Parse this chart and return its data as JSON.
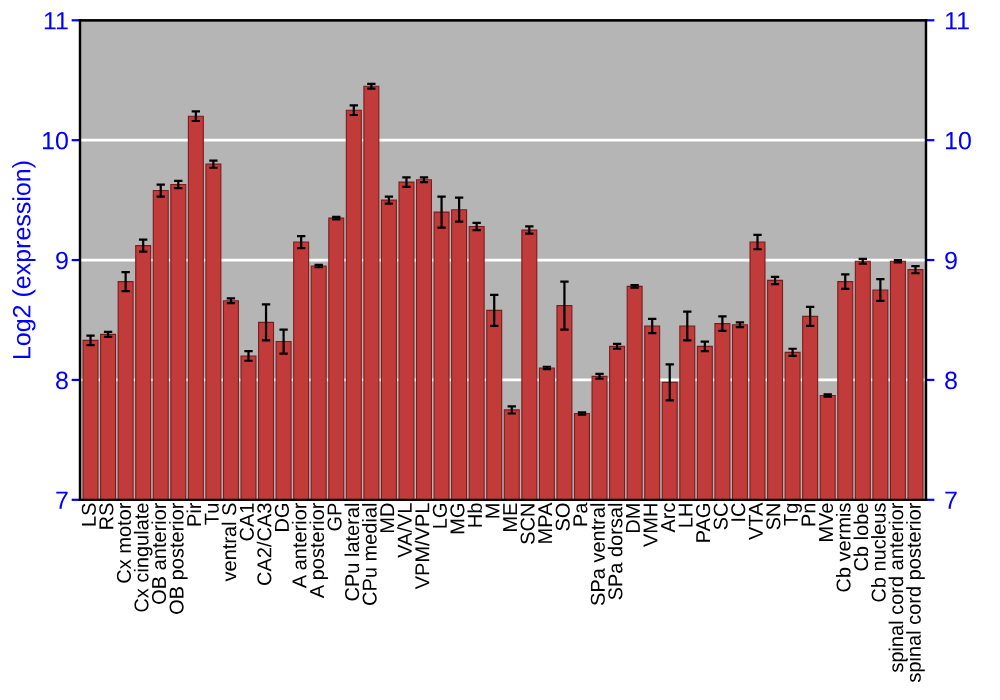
{
  "chart_data": {
    "type": "bar",
    "ylabel": "Log2 (expression)",
    "categories": [
      "LS",
      "RS",
      "Cx motor",
      "Cx cingulate",
      "OB anterior",
      "OB posterior",
      "Pir",
      "Tu",
      "ventral S",
      "CA1",
      "CA2/CA3",
      "DG",
      "A anterior",
      "A posterior",
      "GP",
      "CPu lateral",
      "CPu medial",
      "MD",
      "VA/VL",
      "VPM/VPL",
      "LG",
      "MG",
      "Hb",
      "M",
      "ME",
      "SCN",
      "MPA",
      "SO",
      "Pa",
      "SPa ventral",
      "SPa dorsal",
      "DM",
      "VMH",
      "Arc",
      "LH",
      "PAG",
      "SC",
      "IC",
      "VTA",
      "SN",
      "Tg",
      "Pn",
      "MVe",
      "Cb vermis",
      "Cb lobe",
      "Cb nucleus",
      "spinal cord anterior",
      "spinal cord posterior"
    ],
    "values": [
      8.33,
      8.38,
      8.82,
      9.12,
      9.58,
      9.63,
      10.2,
      9.8,
      8.66,
      8.2,
      8.48,
      8.32,
      9.15,
      8.95,
      9.35,
      10.25,
      10.45,
      9.5,
      9.65,
      9.67,
      9.4,
      9.42,
      9.28,
      8.58,
      7.75,
      9.25,
      8.1,
      8.62,
      7.72,
      8.03,
      8.28,
      8.78,
      8.45,
      7.98,
      8.45,
      8.28,
      8.47,
      8.46,
      9.15,
      8.83,
      8.23,
      8.53,
      7.87,
      8.82,
      8.99,
      8.75,
      8.99,
      8.92
    ],
    "errors": [
      0.04,
      0.02,
      0.08,
      0.05,
      0.05,
      0.03,
      0.04,
      0.03,
      0.02,
      0.04,
      0.15,
      0.1,
      0.05,
      0.01,
      0.01,
      0.04,
      0.02,
      0.03,
      0.04,
      0.02,
      0.13,
      0.1,
      0.03,
      0.13,
      0.03,
      0.03,
      0.01,
      0.2,
      0.01,
      0.02,
      0.02,
      0.01,
      0.06,
      0.15,
      0.12,
      0.04,
      0.06,
      0.02,
      0.06,
      0.03,
      0.03,
      0.08,
      0.01,
      0.06,
      0.02,
      0.09,
      0.01,
      0.03
    ],
    "color": "#c23b3b",
    "ylim": [
      7,
      11
    ],
    "yticks": [
      7,
      8,
      9,
      10,
      11
    ],
    "y2lim": [
      7,
      11
    ],
    "y2ticks": [
      7,
      8,
      9,
      10,
      11
    ],
    "grid": "y",
    "legend": false
  }
}
